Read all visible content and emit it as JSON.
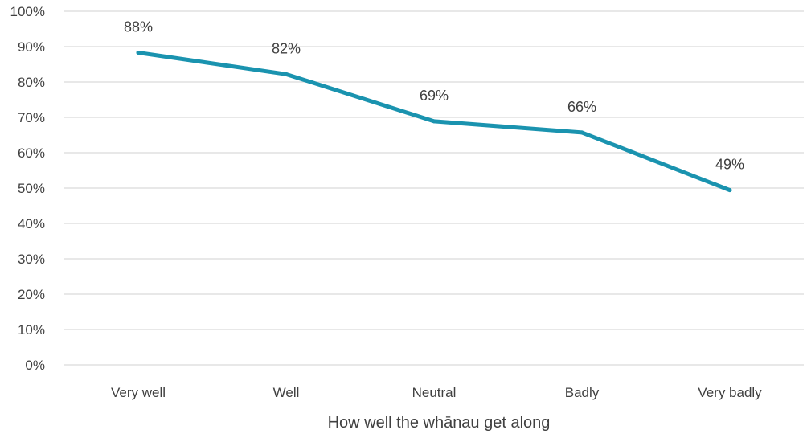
{
  "chart_data": {
    "type": "line",
    "categories": [
      "Very well",
      "Well",
      "Neutral",
      "Badly",
      "Very badly"
    ],
    "series": [
      {
        "values": [
          88.3,
          82.2,
          68.9,
          65.7,
          49.4
        ]
      }
    ],
    "data_labels": [
      "88%",
      "82%",
      "69%",
      "66%",
      "49%"
    ],
    "y_ticks": [
      "0%",
      "10%",
      "20%",
      "30%",
      "40%",
      "50%",
      "60%",
      "70%",
      "80%",
      "90%",
      "100%"
    ],
    "ylim": [
      0,
      100
    ],
    "y_step": 10,
    "xlabel": "How well the whānau get along",
    "ylabel": "",
    "title": "",
    "grid": true,
    "legend": "none",
    "line_color": "#1a93af",
    "grid_color": "#d9d9d9",
    "text_color": "#404040"
  }
}
